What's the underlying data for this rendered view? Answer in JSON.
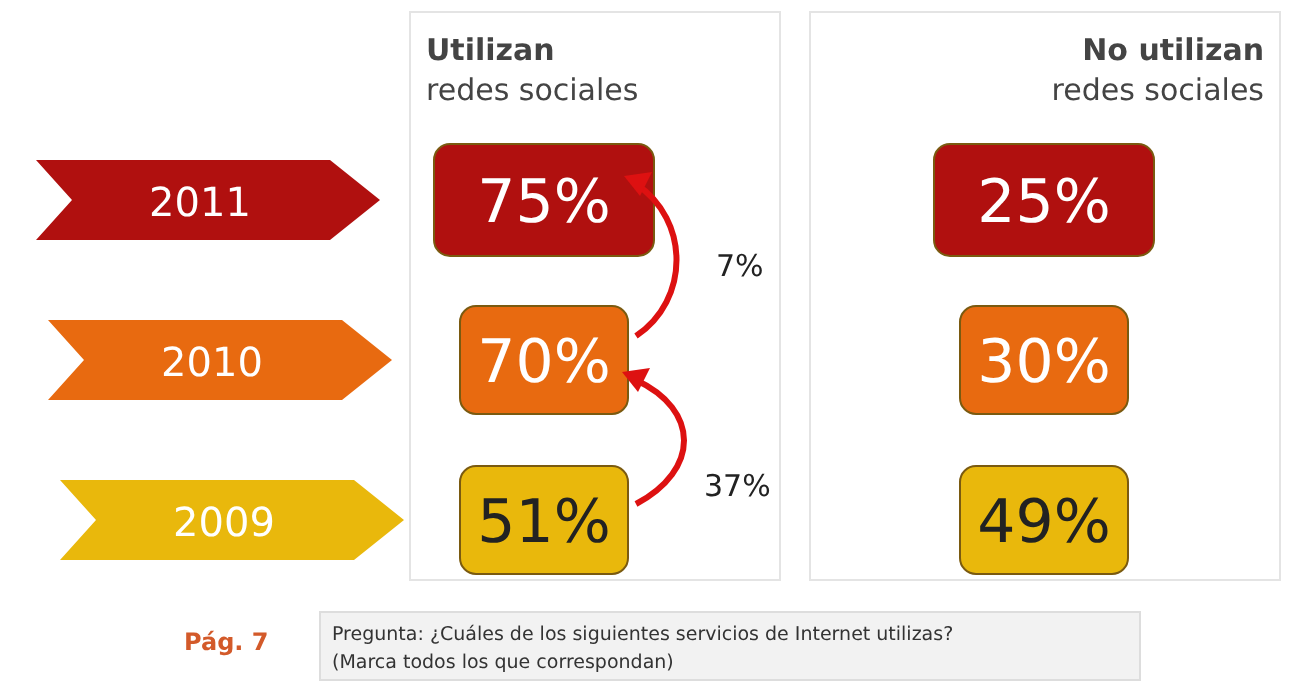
{
  "chart_data": {
    "type": "heatmap",
    "categories": [
      "Utilizan\nredes sociales",
      "No utilizan\nredes sociales"
    ],
    "y_categories": [
      "2011",
      "2010",
      "2009"
    ],
    "cells": [
      [
        75,
        25
      ],
      [
        70,
        30
      ],
      [
        51,
        49
      ]
    ],
    "cell_labels": [
      [
        "75%",
        "25%"
      ],
      [
        "70%",
        "30%"
      ],
      [
        "51%",
        "49%"
      ]
    ],
    "colors": [
      "#b0100f",
      "#e86a10",
      "#e9b80c"
    ],
    "annotations": [
      "7%",
      "37%",
      "Pág. 7",
      "Pregunta: ¿Cuáles de los siguientes servicios de Internet utilizas? (Marca todos los que correspondan)"
    ]
  }
}
